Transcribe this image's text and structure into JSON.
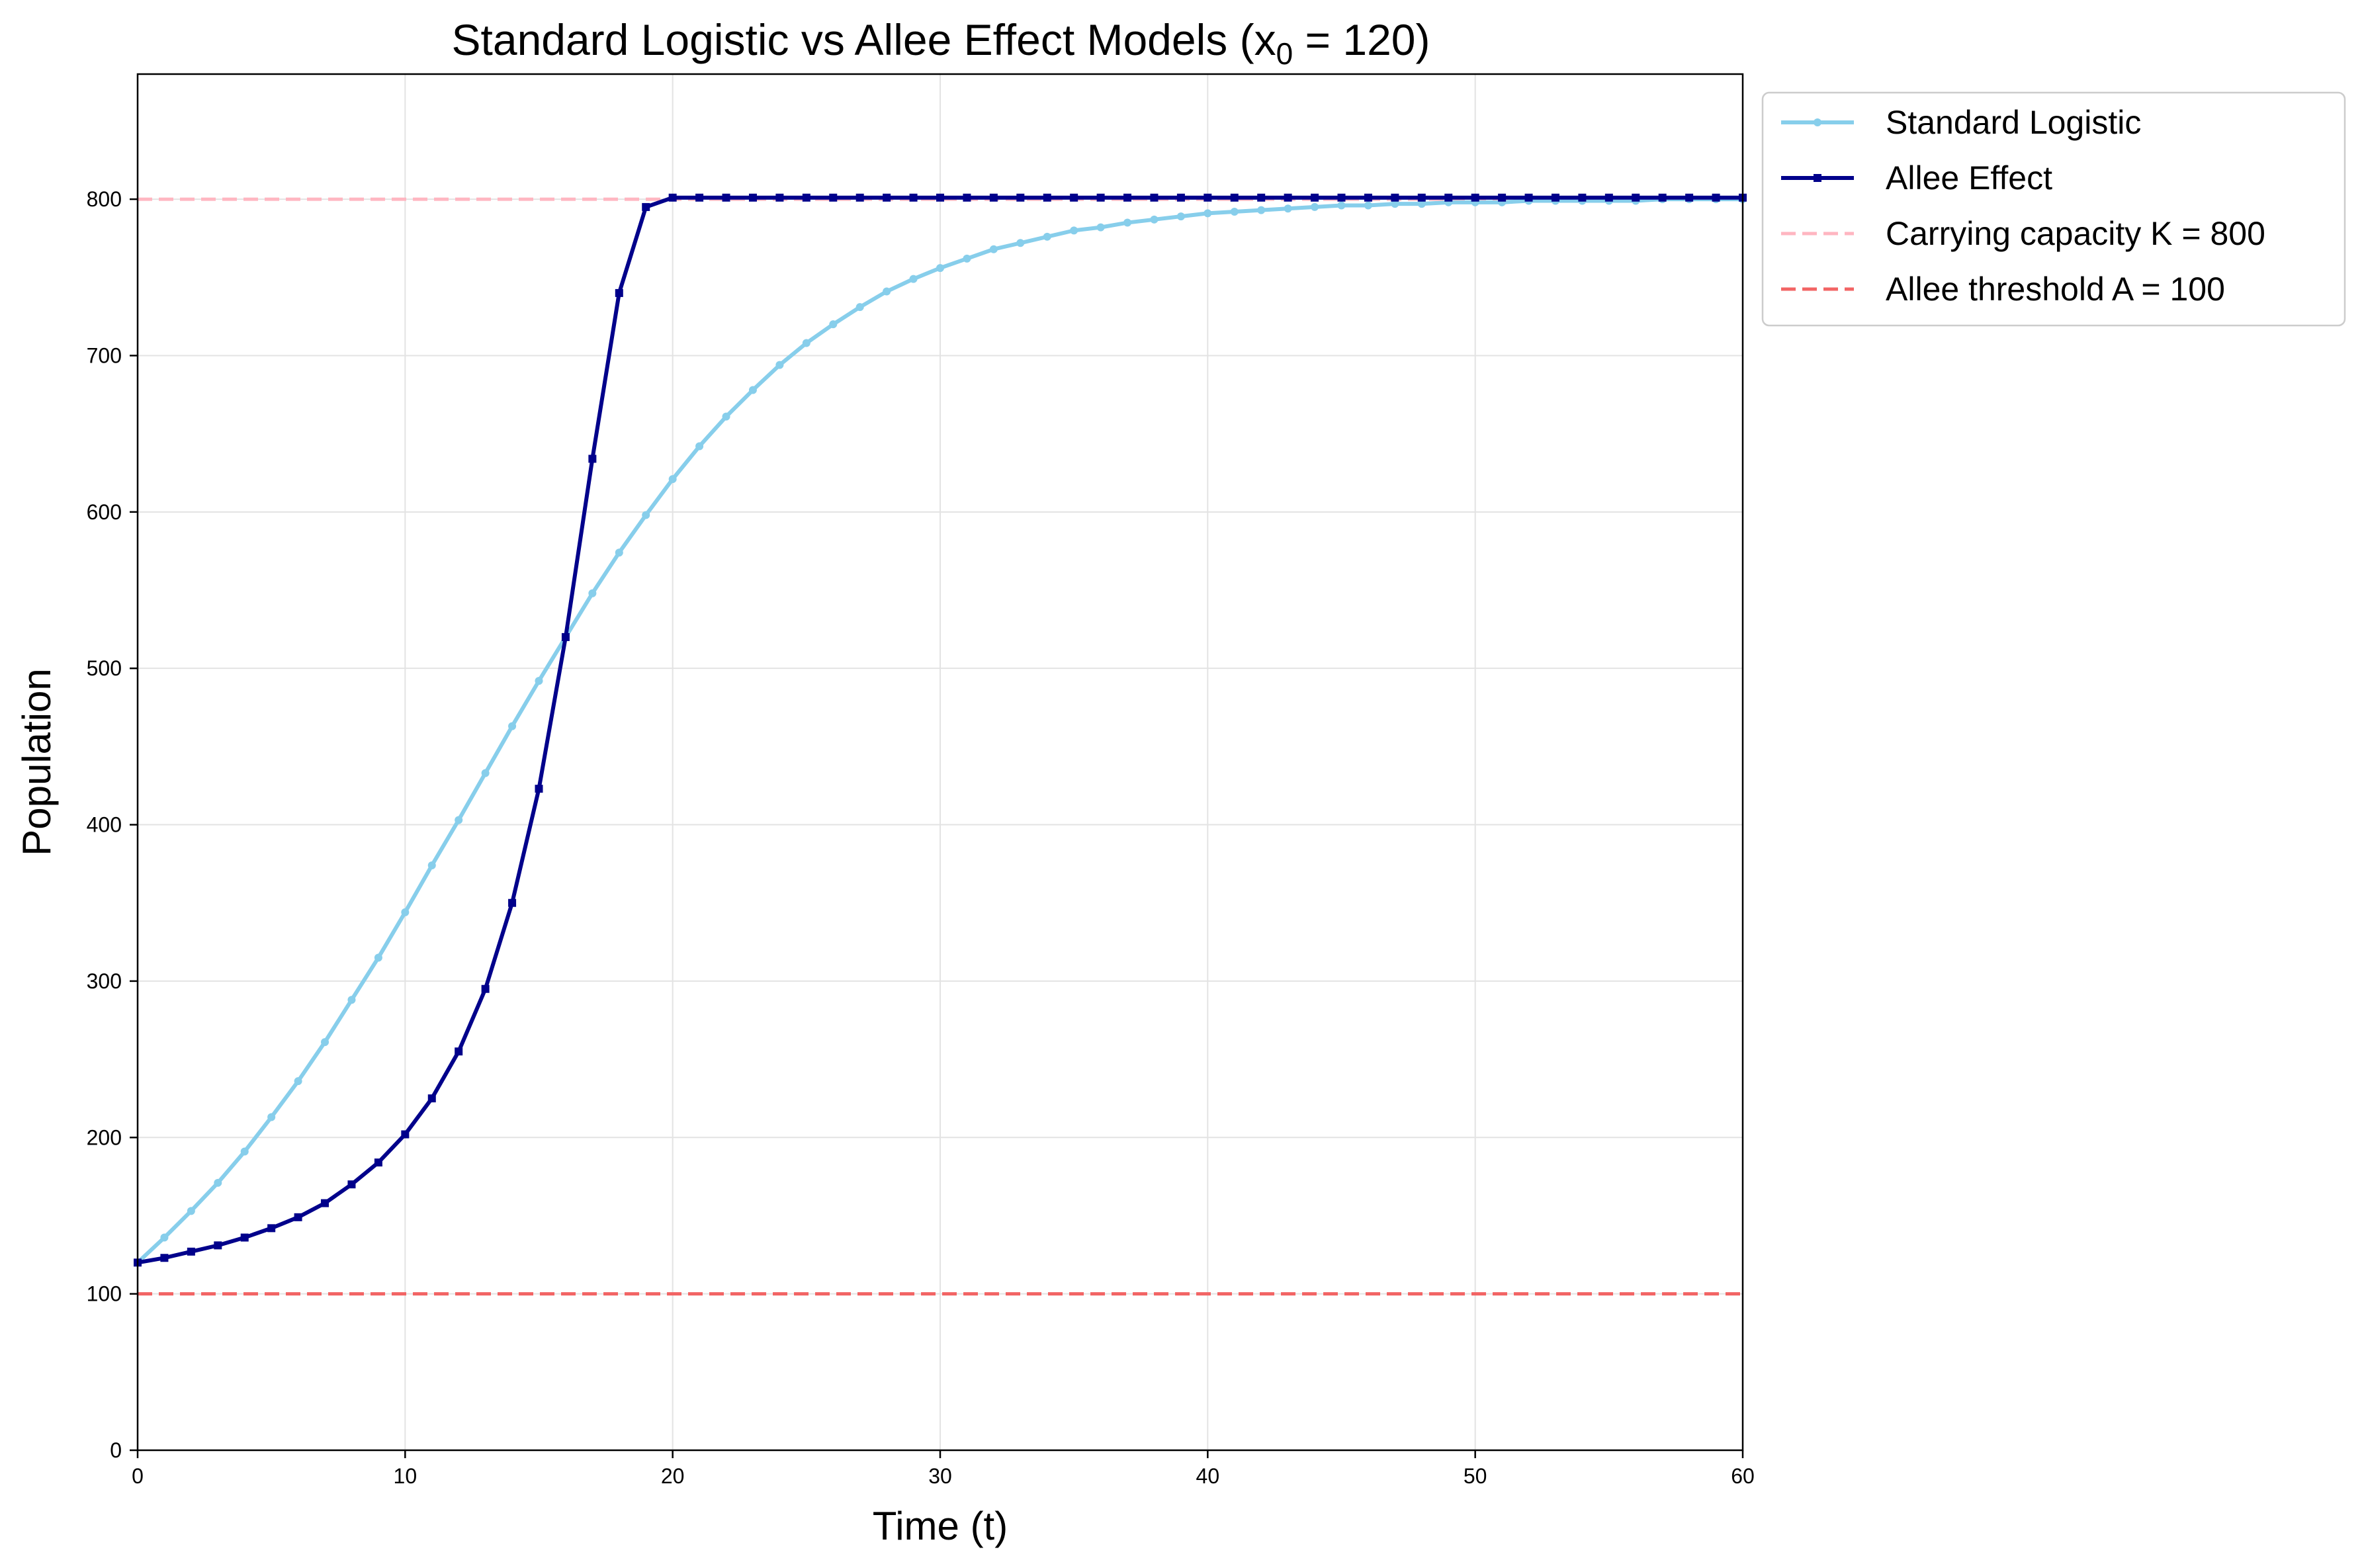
{
  "chart_data": {
    "type": "line",
    "title": "Standard Logistic vs Allee Effect Models (x",
    "title_subscript": "0",
    "title_suffix": " = 120)",
    "xlabel": "Time (t)",
    "ylabel": "Population",
    "xlim": [
      0,
      60
    ],
    "ylim": [
      0,
      880
    ],
    "xticks": [
      0,
      10,
      20,
      30,
      40,
      50,
      60
    ],
    "yticks": [
      0,
      100,
      200,
      300,
      400,
      500,
      600,
      700,
      800
    ],
    "grid": true,
    "legend_position": "outside upper right",
    "x": [
      0,
      1,
      2,
      3,
      4,
      5,
      6,
      7,
      8,
      9,
      10,
      11,
      12,
      13,
      14,
      15,
      16,
      17,
      18,
      19,
      20,
      21,
      22,
      23,
      24,
      25,
      26,
      27,
      28,
      29,
      30,
      31,
      32,
      33,
      34,
      35,
      36,
      37,
      38,
      39,
      40,
      41,
      42,
      43,
      44,
      45,
      46,
      47,
      48,
      49,
      50,
      51,
      52,
      53,
      54,
      55,
      56,
      57,
      58,
      59,
      60
    ],
    "series": [
      {
        "name": "Standard Logistic",
        "color": "#87ceeb",
        "marker": "circle",
        "values": [
          120,
          136,
          153,
          171,
          191,
          213,
          236,
          261,
          288,
          315,
          344,
          374,
          403,
          433,
          463,
          492,
          520,
          548,
          574,
          598,
          621,
          642,
          661,
          678,
          694,
          708,
          720,
          731,
          741,
          749,
          756,
          762,
          768,
          772,
          776,
          780,
          782,
          785,
          787,
          789,
          791,
          792,
          793,
          794,
          795,
          796,
          796,
          797,
          797,
          798,
          798,
          798,
          799,
          799,
          799,
          799,
          799,
          800,
          800,
          800,
          800
        ]
      },
      {
        "name": "Allee Effect",
        "color": "#00008b",
        "marker": "square",
        "values": [
          120,
          123,
          127,
          131,
          136,
          142,
          149,
          158,
          170,
          184,
          202,
          225,
          255,
          295,
          350,
          423,
          520,
          634,
          740,
          795,
          801,
          801,
          801,
          801,
          801,
          801,
          801,
          801,
          801,
          801,
          801,
          801,
          801,
          801,
          801,
          801,
          801,
          801,
          801,
          801,
          801,
          801,
          801,
          801,
          801,
          801,
          801,
          801,
          801,
          801,
          801,
          801,
          801,
          801,
          801,
          801,
          801,
          801,
          801,
          801,
          801
        ]
      }
    ],
    "reference_lines": [
      {
        "name": "Carrying capacity K = 800",
        "y": 800,
        "color": "#ffb6c1",
        "style": "dashed"
      },
      {
        "name": "Allee threshold A = 100",
        "y": 100,
        "color": "#f26464",
        "style": "dashed"
      }
    ]
  }
}
